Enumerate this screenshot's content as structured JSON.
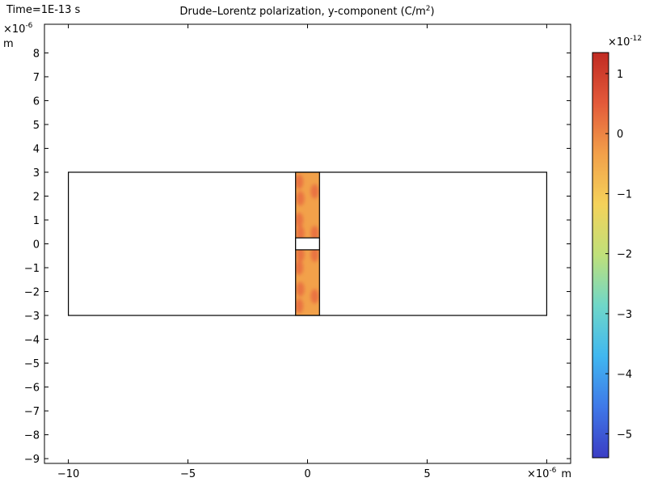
{
  "time_label": "Time=1E-13 s",
  "chart_data": {
    "type": "heatmap",
    "title": "Drude–Lorentz polarization, y-component (C/m",
    "title_superscript": "2",
    "title_suffix": ")",
    "x_axis": {
      "scale_prefix": "×10",
      "scale_exponent": "-6",
      "unit": "m",
      "range": [
        -11,
        11
      ],
      "ticks": [
        -10,
        -5,
        0,
        5
      ]
    },
    "y_axis": {
      "scale_prefix": "×10",
      "scale_exponent": "-6",
      "unit": "m",
      "range": [
        -9.2,
        9.2
      ],
      "ticks": [
        -9,
        -8,
        -7,
        -6,
        -5,
        -4,
        -3,
        -2,
        -1,
        0,
        1,
        2,
        3,
        4,
        5,
        6,
        7,
        8
      ]
    },
    "colorbar": {
      "scale_prefix": "×10",
      "scale_exponent": "-12",
      "range": [
        -5.4,
        1.35
      ],
      "ticks": [
        -5,
        -4,
        -3,
        -2,
        -1,
        0,
        1
      ],
      "colormap": [
        "#3b3dc4",
        "#3f78e8",
        "#40b7f0",
        "#6fd7c9",
        "#bfe07a",
        "#f4d25a",
        "#f2a04a",
        "#e35a3a",
        "#c02a22"
      ]
    },
    "geometry": {
      "domain": {
        "x": [
          -10,
          10
        ],
        "y": [
          -3,
          3
        ]
      },
      "slab": {
        "x": [
          -0.5,
          0.5
        ],
        "y": [
          -3,
          3
        ]
      },
      "gap": {
        "x": [
          -0.5,
          0.5
        ],
        "y": [
          -0.25,
          0.25
        ]
      }
    },
    "slab_field": {
      "base_value": -0.35,
      "hotspot_value": 0.3,
      "hotspots": [
        {
          "x": -0.35,
          "y": 2.6
        },
        {
          "x": -0.3,
          "y": 1.9
        },
        {
          "x": -0.35,
          "y": 1.0
        },
        {
          "x": -0.3,
          "y": 0.45
        },
        {
          "x": 0.3,
          "y": 0.45
        },
        {
          "x": -0.3,
          "y": -0.45
        },
        {
          "x": 0.3,
          "y": -0.45
        },
        {
          "x": -0.35,
          "y": -1.0
        },
        {
          "x": -0.3,
          "y": -1.9
        },
        {
          "x": -0.35,
          "y": -2.6
        },
        {
          "x": 0.3,
          "y": 2.2
        },
        {
          "x": 0.3,
          "y": -2.2
        }
      ]
    }
  }
}
